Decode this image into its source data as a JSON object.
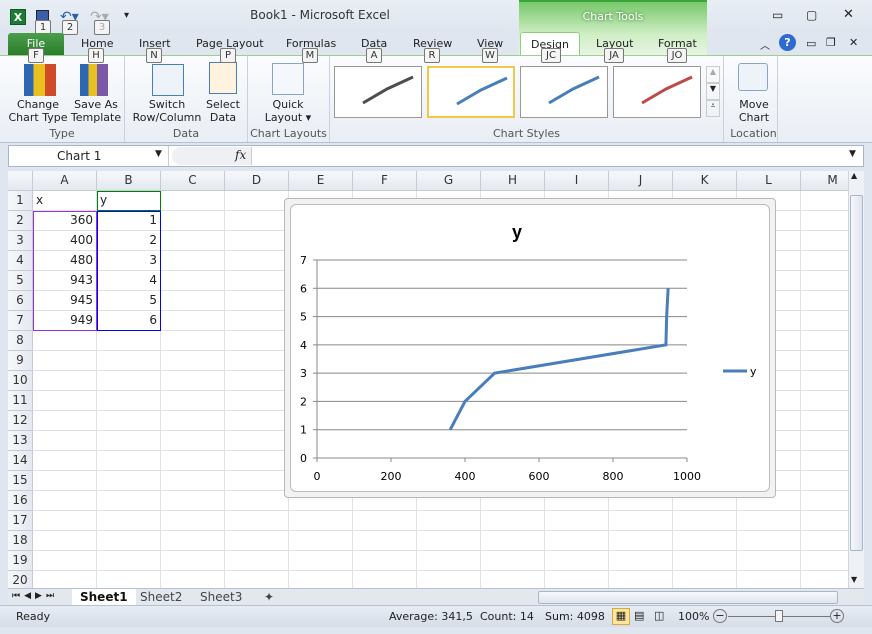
{
  "window": {
    "title": "Book1  -  Microsoft Excel",
    "context_tab_group": "Chart Tools"
  },
  "qat": {
    "keys": [
      "1",
      "2",
      "3"
    ]
  },
  "tabs": [
    {
      "label": "File",
      "key": "F"
    },
    {
      "label": "Home",
      "key": "H"
    },
    {
      "label": "Insert",
      "key": "N"
    },
    {
      "label": "Page Layout",
      "key": "P"
    },
    {
      "label": "Formulas",
      "key": "M"
    },
    {
      "label": "Data",
      "key": "A"
    },
    {
      "label": "Review",
      "key": "R"
    },
    {
      "label": "View",
      "key": "W"
    },
    {
      "label": "Design",
      "key": "JC"
    },
    {
      "label": "Layout",
      "key": "JA"
    },
    {
      "label": "Format",
      "key": "JO"
    }
  ],
  "ribbon": {
    "type_group": {
      "label": "Type",
      "change": "Change\nChart Type",
      "save": "Save As\nTemplate"
    },
    "data_group": {
      "label": "Data",
      "switch": "Switch\nRow/Column",
      "select": "Select\nData"
    },
    "layouts_group": {
      "label": "Chart Layouts",
      "quick": "Quick\nLayout ▾"
    },
    "styles_group": {
      "label": "Chart Styles",
      "styles": [
        {
          "color": "#4d4d4d",
          "selected": false
        },
        {
          "color": "#4a7ebb",
          "selected": true
        },
        {
          "color": "#4a7ebb",
          "selected": false
        },
        {
          "color": "#be4b48",
          "selected": false
        }
      ]
    },
    "location_group": {
      "label": "Location",
      "move": "Move\nChart"
    }
  },
  "formula_bar": {
    "name_box": "Chart 1",
    "fx": "fx",
    "value": ""
  },
  "columns": [
    "A",
    "B",
    "C",
    "D",
    "E",
    "F",
    "G",
    "H",
    "I",
    "J",
    "K",
    "L",
    "M"
  ],
  "rows": [
    "1",
    "2",
    "3",
    "4",
    "5",
    "6",
    "7",
    "8",
    "9",
    "10",
    "11",
    "12",
    "13",
    "14",
    "15",
    "16",
    "17",
    "18",
    "19",
    "20"
  ],
  "cells": {
    "A1": "x",
    "B1": "y",
    "A2": "360",
    "B2": "1",
    "A3": "400",
    "B3": "2",
    "A4": "480",
    "B4": "3",
    "A5": "943",
    "B5": "4",
    "A6": "945",
    "B6": "5",
    "A7": "949",
    "B7": "6"
  },
  "chart_data": {
    "type": "line",
    "title": "y",
    "x": [
      360,
      400,
      480,
      943,
      945,
      949
    ],
    "series": [
      {
        "name": "y",
        "values": [
          1,
          2,
          3,
          4,
          5,
          6
        ],
        "color": "#4a7ebb"
      }
    ],
    "xlim": [
      0,
      1000
    ],
    "ylim": [
      0,
      7
    ],
    "xticks": [
      "0",
      "200",
      "400",
      "600",
      "800",
      "1000"
    ],
    "yticks": [
      "0",
      "1",
      "2",
      "3",
      "4",
      "5",
      "6",
      "7"
    ],
    "grid": true,
    "legend": "right"
  },
  "sheets": {
    "tabs": [
      "Sheet1",
      "Sheet2",
      "Sheet3"
    ],
    "active": "Sheet1"
  },
  "status": {
    "ready": "Ready",
    "average": "Average: 341,5",
    "count": "Count: 14",
    "sum": "Sum: 4098",
    "zoom": "100%"
  }
}
